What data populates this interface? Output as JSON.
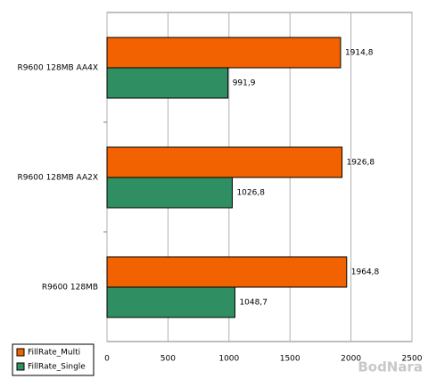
{
  "chart_data": {
    "type": "hbar",
    "categories": [
      "R9600 128MB AA4X",
      "R9600 128MB AA2X",
      "R9600 128MB"
    ],
    "series": [
      {
        "name": "FillRate_Multi",
        "color": "#f26200",
        "values": [
          1914.8,
          1926.8,
          1964.8
        ],
        "value_labels": [
          "1914,8",
          "1926,8",
          "1964,8"
        ]
      },
      {
        "name": "FillRate_Single",
        "color": "#2f8f62",
        "values": [
          991.9,
          1026.8,
          1048.7
        ],
        "value_labels": [
          "991,9",
          "1026,8",
          "1048,7"
        ]
      }
    ],
    "xlim": [
      0,
      2500
    ],
    "xticks": [
      0,
      500,
      1000,
      1500,
      2000,
      2500
    ],
    "grid": true,
    "legend": "bottom-left",
    "watermark": "BodNara"
  }
}
